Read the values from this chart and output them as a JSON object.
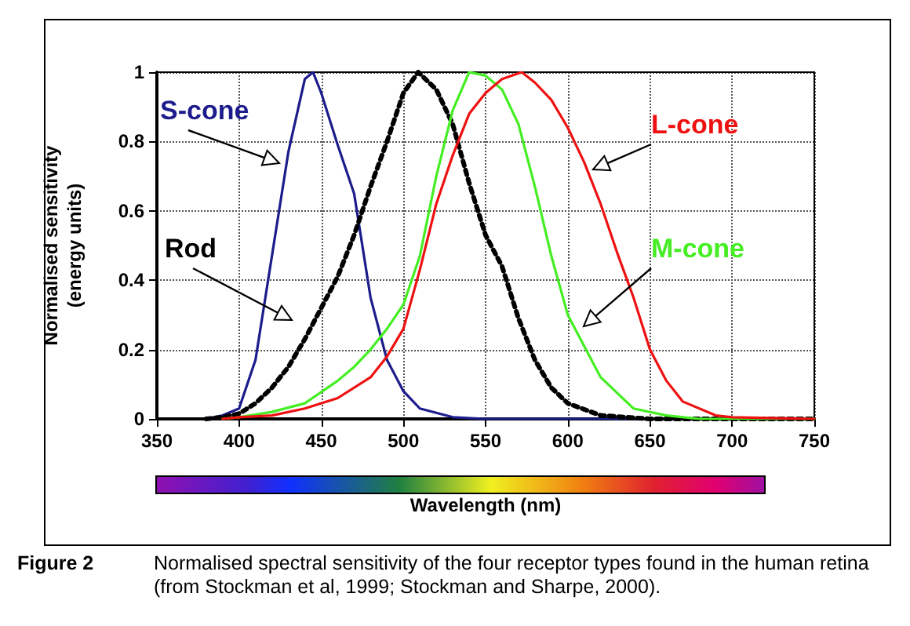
{
  "chart_data": {
    "type": "line",
    "xlabel": "Wavelength (nm)",
    "ylabel": "Normalised sensitivity\n(energy units)",
    "xlim": [
      350,
      750
    ],
    "xticks": [
      350,
      400,
      450,
      500,
      550,
      600,
      650,
      700,
      750
    ],
    "ylim": [
      0,
      1
    ],
    "yticks": [
      0,
      0.2,
      0.4,
      0.6,
      0.8,
      1
    ],
    "grid": true,
    "legend": false,
    "marker": "none",
    "series": [
      {
        "name": "S-cone",
        "color": "#1c1c8c",
        "line_style": "solid",
        "x": [
          380,
          390,
          400,
          410,
          420,
          430,
          440,
          445,
          450,
          460,
          470,
          480,
          490,
          500,
          510,
          530,
          550,
          750
        ],
        "values": [
          0,
          0.01,
          0.03,
          0.17,
          0.47,
          0.77,
          0.98,
          1,
          0.94,
          0.79,
          0.65,
          0.35,
          0.17,
          0.08,
          0.03,
          0.005,
          0,
          0
        ]
      },
      {
        "name": "Rod",
        "color": "#000000",
        "line_style": "dotted",
        "x": [
          380,
          390,
          400,
          410,
          420,
          430,
          440,
          450,
          460,
          470,
          480,
          490,
          500,
          509,
          520,
          530,
          540,
          550,
          560,
          570,
          580,
          590,
          600,
          620,
          650,
          750
        ],
        "values": [
          0,
          0.005,
          0.015,
          0.045,
          0.09,
          0.15,
          0.23,
          0.32,
          0.41,
          0.53,
          0.67,
          0.8,
          0.94,
          1,
          0.95,
          0.85,
          0.68,
          0.53,
          0.44,
          0.29,
          0.17,
          0.09,
          0.045,
          0.01,
          0,
          0
        ]
      },
      {
        "name": "M-cone",
        "color": "#44ee22",
        "line_style": "solid",
        "x": [
          390,
          400,
          420,
          440,
          460,
          470,
          480,
          490,
          500,
          510,
          520,
          530,
          540,
          550,
          560,
          570,
          580,
          590,
          600,
          610,
          620,
          640,
          660,
          680,
          750
        ],
        "values": [
          0,
          0.005,
          0.02,
          0.045,
          0.11,
          0.15,
          0.2,
          0.26,
          0.33,
          0.47,
          0.7,
          0.89,
          1,
          0.99,
          0.95,
          0.85,
          0.67,
          0.47,
          0.3,
          0.21,
          0.12,
          0.03,
          0.01,
          0,
          0
        ]
      },
      {
        "name": "L-cone",
        "color": "#ee1111",
        "line_style": "solid",
        "x": [
          390,
          400,
          420,
          440,
          460,
          480,
          490,
          500,
          510,
          520,
          530,
          540,
          550,
          560,
          572,
          580,
          590,
          600,
          610,
          620,
          630,
          640,
          650,
          660,
          670,
          690,
          700,
          750
        ],
        "values": [
          0,
          0.005,
          0.01,
          0.03,
          0.06,
          0.12,
          0.18,
          0.26,
          0.43,
          0.62,
          0.76,
          0.88,
          0.94,
          0.98,
          1,
          0.97,
          0.92,
          0.84,
          0.74,
          0.62,
          0.48,
          0.35,
          0.2,
          0.11,
          0.05,
          0.01,
          0.005,
          0
        ]
      }
    ],
    "annotations": [
      "Figure 2",
      "Normalised spectral sensitivity of the four receptor types found in the human retina (from Stockman et al, 1999; Stockman and Sharpe, 2000)."
    ]
  }
}
